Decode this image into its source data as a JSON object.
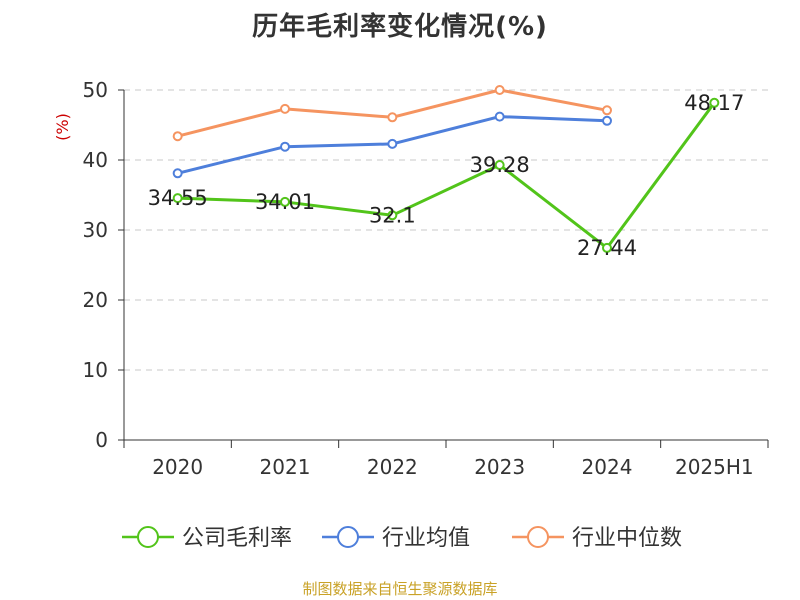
{
  "chart_data": {
    "type": "line",
    "title": "历年毛利率变化情况(%)",
    "ylabel": "(%)",
    "ylim": [
      0,
      50
    ],
    "yticks": [
      0,
      10,
      20,
      30,
      40,
      50
    ],
    "categories": [
      "2020",
      "2021",
      "2022",
      "2023",
      "2024",
      "2025H1"
    ],
    "grid": true,
    "legend": "bottom",
    "series": [
      {
        "name": "公司毛利率",
        "color": "#52c41a",
        "values": [
          34.55,
          34.01,
          32.1,
          39.28,
          27.44,
          48.17
        ],
        "labels": [
          "34.55",
          "34.01",
          "32.1",
          "39.28",
          "27.44",
          "48.17"
        ]
      },
      {
        "name": "行业均值",
        "color": "#4e7fdb",
        "values": [
          38.1,
          41.9,
          42.3,
          46.2,
          45.6,
          null
        ]
      },
      {
        "name": "行业中位数",
        "color": "#f59460",
        "values": [
          43.4,
          47.3,
          46.1,
          50.0,
          47.1,
          null
        ]
      }
    ]
  },
  "source": "制图数据来自恒生聚源数据库"
}
